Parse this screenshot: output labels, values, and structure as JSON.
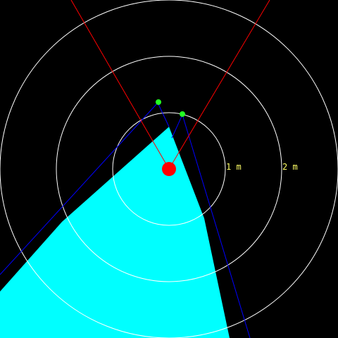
{
  "range_rings": {
    "labels": [
      "1 m",
      "2 m"
    ]
  },
  "colors": {
    "background": "#000000",
    "ring": "#ffffff",
    "ring_label": "#ffff66",
    "free_space": "#00ffff",
    "robot": "#ff0000",
    "ray": "#ff0000",
    "boundary": "#0000ff",
    "target": "#22ff22"
  },
  "icons": {
    "robot": "red-circle-robot-icon",
    "target": "green-dot-target-icon"
  }
}
